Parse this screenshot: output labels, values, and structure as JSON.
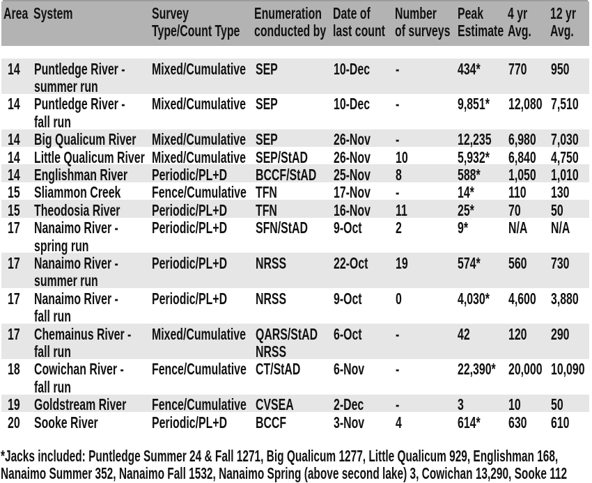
{
  "colors": {
    "page_bg": "#ffffff",
    "header_bg": "#b3b3b3",
    "row_shaded_bg": "#e6e6e6",
    "row_bg": "#ffffff",
    "text": "#111111",
    "top_rule": "#9b9b9b"
  },
  "table": {
    "headers": [
      {
        "id": "area",
        "label": "Area"
      },
      {
        "id": "system",
        "label": "System"
      },
      {
        "id": "survey_type",
        "label": "Survey\nType/Count Type"
      },
      {
        "id": "enumeration",
        "label": "Enumeration\nconducted by"
      },
      {
        "id": "last_count_date",
        "label": "Date of\nlast count"
      },
      {
        "id": "num_surveys",
        "label": "Number\nof surveys"
      },
      {
        "id": "peak_estimate",
        "label": "Peak\nEstimate"
      },
      {
        "id": "avg_4yr",
        "label": "4 yr\nAvg."
      },
      {
        "id": "avg_12yr",
        "label": "12 yr\nAvg."
      }
    ],
    "rows": [
      {
        "shaded": true,
        "area": "14",
        "system": "Puntledge River -\nsummer run",
        "survey_type": "Mixed/Cumulative",
        "enumeration": "SEP",
        "last_count_date": "10-Dec",
        "num_surveys": "-",
        "peak_estimate": "434*",
        "avg_4yr": "770",
        "avg_12yr": "950"
      },
      {
        "shaded": false,
        "area": "14",
        "system": "Puntledge River -\nfall run",
        "survey_type": "Mixed/Cumulative",
        "enumeration": "SEP",
        "last_count_date": "10-Dec",
        "num_surveys": "-",
        "peak_estimate": "9,851*",
        "avg_4yr": "12,080",
        "avg_12yr": "7,510"
      },
      {
        "shaded": true,
        "area": "14",
        "system": "Big Qualicum River",
        "survey_type": "Mixed/Cumulative",
        "enumeration": "SEP",
        "last_count_date": "26-Nov",
        "num_surveys": "-",
        "peak_estimate": "12,235",
        "avg_4yr": "6,980",
        "avg_12yr": "7,030"
      },
      {
        "shaded": false,
        "area": "14",
        "system": "Little Qualicum River",
        "survey_type": "Mixed/Cumulative",
        "enumeration": "SEP/StAD",
        "last_count_date": "26-Nov",
        "num_surveys": "10",
        "peak_estimate": "5,932*",
        "avg_4yr": "6,840",
        "avg_12yr": "4,750"
      },
      {
        "shaded": true,
        "area": "14",
        "system": "Englishman River",
        "survey_type": "Periodic/PL+D",
        "enumeration": "BCCF/StAD",
        "last_count_date": "25-Nov",
        "num_surveys": "8",
        "peak_estimate": "588*",
        "avg_4yr": "1,050",
        "avg_12yr": "1,010"
      },
      {
        "shaded": false,
        "area": "15",
        "system": "Sliammon Creek",
        "survey_type": "Fence/Cumulative",
        "enumeration": "TFN",
        "last_count_date": "17-Nov",
        "num_surveys": "-",
        "peak_estimate": "14*",
        "avg_4yr": "110",
        "avg_12yr": "130"
      },
      {
        "shaded": true,
        "area": "15",
        "system": "Theodosia River",
        "survey_type": "Periodic/PL+D",
        "enumeration": "TFN",
        "last_count_date": "16-Nov",
        "num_surveys": "11",
        "peak_estimate": "25*",
        "avg_4yr": "70",
        "avg_12yr": "50"
      },
      {
        "shaded": false,
        "area": "17",
        "system": "Nanaimo River -\nspring run",
        "survey_type": "Periodic/PL+D",
        "enumeration": "SFN/StAD",
        "last_count_date": "9-Oct",
        "num_surveys": "2",
        "peak_estimate": "9*",
        "avg_4yr": "N/A",
        "avg_12yr": "N/A"
      },
      {
        "shaded": true,
        "area": "17",
        "system": "Nanaimo River -\nsummer run",
        "survey_type": "Periodic/PL+D",
        "enumeration": "NRSS",
        "last_count_date": "22-Oct",
        "num_surveys": "19",
        "peak_estimate": "574*",
        "avg_4yr": "560",
        "avg_12yr": "730"
      },
      {
        "shaded": false,
        "area": "17",
        "system": "Nanaimo River -\nfall run",
        "survey_type": "Periodic/PL+D",
        "enumeration": "NRSS",
        "last_count_date": "9-Oct",
        "num_surveys": "0",
        "peak_estimate": "4,030*",
        "avg_4yr": "4,600",
        "avg_12yr": "3,880"
      },
      {
        "shaded": true,
        "area": "17",
        "system": "Chemainus River -\nfall run",
        "survey_type": "Mixed/Cumulative",
        "enumeration": "QARS/StAD\nNRSS",
        "last_count_date": "6-Oct",
        "num_surveys": "-",
        "peak_estimate": "42",
        "avg_4yr": "120",
        "avg_12yr": "290"
      },
      {
        "shaded": false,
        "area": "18",
        "system": "Cowichan River -\nfall run",
        "survey_type": "Fence/Cumulative",
        "enumeration": "CT/StAD",
        "last_count_date": "6-Nov",
        "num_surveys": "-",
        "peak_estimate": "22,390*",
        "avg_4yr": "20,000",
        "avg_12yr": "10,090"
      },
      {
        "shaded": true,
        "area": "19",
        "system": "Goldstream River",
        "survey_type": "Fence/Cumulative",
        "enumeration": "CVSEA",
        "last_count_date": "2-Dec",
        "num_surveys": "-",
        "peak_estimate": "3",
        "avg_4yr": "10",
        "avg_12yr": "50"
      },
      {
        "shaded": false,
        "area": "20",
        "system": "Sooke River",
        "survey_type": "Periodic/PL+D",
        "enumeration": "BCCF",
        "last_count_date": "3-Nov",
        "num_surveys": "4",
        "peak_estimate": "614*",
        "avg_4yr": "630",
        "avg_12yr": "610"
      }
    ]
  },
  "footnote": "*Jacks included: Puntledge Summer 24 & Fall 1271, Big Qualicum 1277, Little Qualicum 929, Englishman 168, Nanaimo Summer 352, Nanaimo Fall 1532, Nanaimo Spring (above second lake) 3, Cowichan 13,290, Sooke 112"
}
